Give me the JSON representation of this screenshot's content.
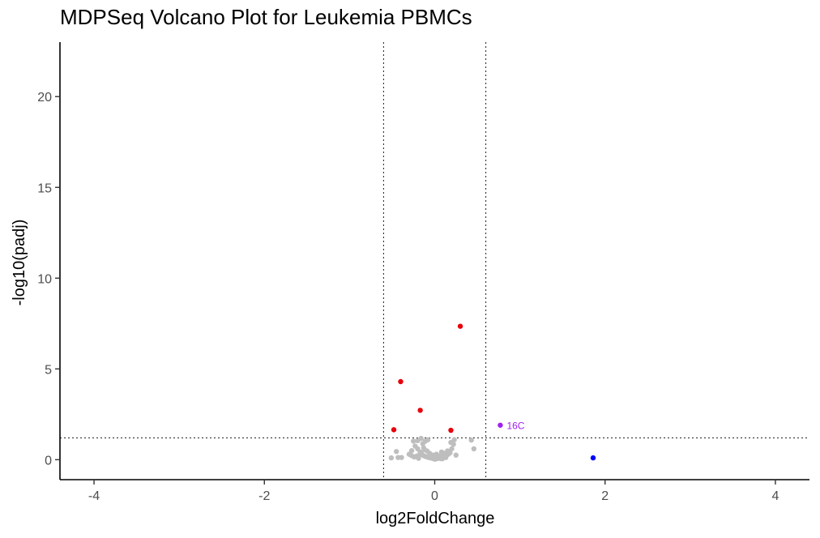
{
  "chart_data": {
    "type": "scatter",
    "title": "MDPSeq Volcano Plot for Leukemia PBMCs",
    "xlabel": "log2FoldChange",
    "ylabel": "-log10(padj)",
    "xlim": [
      -4.4,
      4.4
    ],
    "ylim": [
      -1.1,
      23
    ],
    "xticks": [
      -4,
      -2,
      0,
      2,
      4
    ],
    "xtick_labels": [
      "-4",
      "-2",
      "0",
      "2",
      "4"
    ],
    "yticks": [
      0,
      5,
      10,
      15,
      20
    ],
    "ytick_labels": [
      "0",
      "5",
      "10",
      "15",
      "20"
    ],
    "grid": false,
    "thresholds": {
      "log2fc": [
        -0.6,
        0.6
      ],
      "neg_log10_padj": 1.2
    },
    "colors": {
      "not_significant": "#bebebe",
      "significant": "#e8000b",
      "labeled": "#a020f0",
      "high_fc": "#0000ff",
      "threshold_line": "#333333"
    },
    "series": [
      {
        "color_key": "not_significant",
        "points": [
          [
            -0.45,
            0.45
          ],
          [
            -0.43,
            0.12
          ],
          [
            -0.39,
            0.12
          ],
          [
            -0.51,
            0.1
          ],
          [
            -0.16,
            1.17
          ],
          [
            -0.2,
            1.05
          ],
          [
            -0.25,
            1.02
          ],
          [
            -0.11,
            1.02
          ],
          [
            -0.08,
            1.1
          ],
          [
            -0.14,
            0.88
          ],
          [
            -0.23,
            0.75
          ],
          [
            -0.2,
            0.6
          ],
          [
            -0.17,
            0.42
          ],
          [
            -0.12,
            0.55
          ],
          [
            -0.09,
            0.48
          ],
          [
            -0.3,
            0.3
          ],
          [
            -0.27,
            0.22
          ],
          [
            -0.24,
            0.15
          ],
          [
            -0.21,
            0.2
          ],
          [
            -0.18,
            0.25
          ],
          [
            -0.15,
            0.3
          ],
          [
            -0.13,
            0.22
          ],
          [
            -0.11,
            0.18
          ],
          [
            -0.09,
            0.15
          ],
          [
            -0.07,
            0.12
          ],
          [
            -0.05,
            0.1
          ],
          [
            -0.03,
            0.08
          ],
          [
            -0.01,
            0.05
          ],
          [
            0.0,
            0.03
          ],
          [
            0.02,
            0.05
          ],
          [
            0.04,
            0.08
          ],
          [
            0.06,
            0.1
          ],
          [
            0.08,
            0.14
          ],
          [
            0.1,
            0.18
          ],
          [
            0.12,
            0.22
          ],
          [
            0.14,
            0.26
          ],
          [
            0.16,
            0.3
          ],
          [
            0.18,
            0.38
          ],
          [
            0.2,
            0.6
          ],
          [
            0.19,
            0.95
          ],
          [
            0.22,
            0.85
          ],
          [
            0.23,
            1.1
          ],
          [
            0.25,
            0.25
          ],
          [
            0.43,
            1.08
          ],
          [
            0.46,
            0.6
          ],
          [
            -0.06,
            0.35
          ],
          [
            0.02,
            0.3
          ],
          [
            0.08,
            0.42
          ],
          [
            -0.02,
            0.25
          ],
          [
            0.05,
            0.2
          ],
          [
            0.11,
            0.35
          ],
          [
            -0.13,
            0.65
          ],
          [
            0.15,
            0.48
          ],
          [
            0.13,
            0.12
          ],
          [
            -0.27,
            0.5
          ],
          [
            -0.19,
            0.08
          ],
          [
            0.07,
            0.06
          ],
          [
            0.09,
            0.05
          ],
          [
            -0.04,
            0.18
          ],
          [
            0.0,
            0.15
          ]
        ]
      },
      {
        "color_key": "significant",
        "points": [
          [
            0.3,
            7.35
          ],
          [
            -0.4,
            4.3
          ],
          [
            -0.17,
            2.72
          ],
          [
            -0.48,
            1.65
          ],
          [
            0.19,
            1.62
          ]
        ]
      },
      {
        "color_key": "labeled",
        "points": [
          [
            0.77,
            1.9
          ]
        ],
        "labels": [
          "16C"
        ]
      },
      {
        "color_key": "high_fc",
        "points": [
          [
            1.86,
            0.1
          ]
        ]
      }
    ]
  }
}
